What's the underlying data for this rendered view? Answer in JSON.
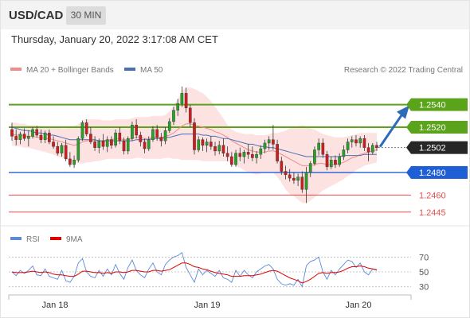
{
  "header": {
    "symbol": "USD/CAD",
    "timeframe": "30 MIN"
  },
  "datetime": "Thursday, January 20, 2022 3:17:08 AM CET",
  "legend": {
    "ma20_label": "MA 20 + Bollinger Bands",
    "ma50_label": "MA 50",
    "copyright": "Research © 2022 Trading Central"
  },
  "colors": {
    "bull": "#27a127",
    "bear": "#cc1e1e",
    "band_fill": "#fde2e2",
    "ma20": "#f08c8c",
    "ma50": "#4a6fb5",
    "resistance": "#5aa31b",
    "support": "#1f5fd6",
    "target": "#e05050",
    "arrow": "#2c6bb8",
    "rsi": "#5b8ad8",
    "rsi_ma": "#e00000"
  },
  "levels": [
    {
      "id": "r2",
      "value": 1.254,
      "label": "1.2540",
      "kind": "resistance"
    },
    {
      "id": "r1",
      "value": 1.252,
      "label": "1.2520",
      "kind": "resistance"
    },
    {
      "id": "last",
      "value": 1.2502,
      "label": "1.2502",
      "kind": "last"
    },
    {
      "id": "s1",
      "value": 1.248,
      "label": "1.2480",
      "kind": "support"
    },
    {
      "id": "s2",
      "value": 1.246,
      "label": "1.2460",
      "kind": "target"
    },
    {
      "id": "s3",
      "value": 1.2445,
      "label": "1.2445",
      "kind": "target"
    }
  ],
  "oscillator": {
    "rsi_label": "RSI",
    "ma_label": "9MA",
    "ticks": [
      "70",
      "50",
      "30"
    ]
  },
  "x_axis": {
    "labels": [
      "Jan 18",
      "Jan 19",
      "Jan 20"
    ]
  },
  "chart_data": {
    "type": "candlestick",
    "interval": "30 MIN",
    "ylim": [
      1.2435,
      1.2565
    ],
    "ohlc": [
      [
        1.2518,
        1.2524,
        1.2508,
        1.2512
      ],
      [
        1.2512,
        1.2518,
        1.2504,
        1.2509
      ],
      [
        1.2509,
        1.2516,
        1.2505,
        1.2514
      ],
      [
        1.2514,
        1.2519,
        1.2508,
        1.251
      ],
      [
        1.251,
        1.2517,
        1.2503,
        1.2512
      ],
      [
        1.2512,
        1.252,
        1.251,
        1.2518
      ],
      [
        1.2518,
        1.2521,
        1.2511,
        1.2513
      ],
      [
        1.2513,
        1.2518,
        1.2506,
        1.2509
      ],
      [
        1.2509,
        1.2517,
        1.2506,
        1.2515
      ],
      [
        1.2515,
        1.2518,
        1.2505,
        1.2507
      ],
      [
        1.2507,
        1.2512,
        1.2501,
        1.2503
      ],
      [
        1.2503,
        1.2507,
        1.2495,
        1.2497
      ],
      [
        1.2497,
        1.2506,
        1.2494,
        1.2504
      ],
      [
        1.2504,
        1.2509,
        1.249,
        1.2492
      ],
      [
        1.2492,
        1.2498,
        1.2485,
        1.2487
      ],
      [
        1.2487,
        1.2495,
        1.2484,
        1.2491
      ],
      [
        1.2491,
        1.2512,
        1.2489,
        1.251
      ],
      [
        1.251,
        1.2526,
        1.2508,
        1.2524
      ],
      [
        1.2524,
        1.2527,
        1.2512,
        1.2514
      ],
      [
        1.2514,
        1.252,
        1.2505,
        1.2507
      ],
      [
        1.2507,
        1.2512,
        1.2499,
        1.2502
      ],
      [
        1.2502,
        1.251,
        1.2497,
        1.2508
      ],
      [
        1.2508,
        1.2514,
        1.25,
        1.2503
      ],
      [
        1.2503,
        1.2512,
        1.2498,
        1.2509
      ],
      [
        1.2509,
        1.2512,
        1.2501,
        1.2504
      ],
      [
        1.2504,
        1.2518,
        1.2502,
        1.2515
      ],
      [
        1.2515,
        1.252,
        1.2505,
        1.2508
      ],
      [
        1.2508,
        1.2511,
        1.2496,
        1.2499
      ],
      [
        1.2499,
        1.2512,
        1.2496,
        1.251
      ],
      [
        1.251,
        1.2525,
        1.2508,
        1.2522
      ],
      [
        1.2522,
        1.2527,
        1.251,
        1.2513
      ],
      [
        1.2513,
        1.2516,
        1.2503,
        1.2507
      ],
      [
        1.2507,
        1.251,
        1.2497,
        1.2501
      ],
      [
        1.2501,
        1.2512,
        1.2499,
        1.2509
      ],
      [
        1.2509,
        1.2521,
        1.2507,
        1.2518
      ],
      [
        1.2518,
        1.2522,
        1.2508,
        1.2511
      ],
      [
        1.2511,
        1.2515,
        1.2503,
        1.2508
      ],
      [
        1.2508,
        1.252,
        1.2505,
        1.2517
      ],
      [
        1.2517,
        1.2528,
        1.2515,
        1.2525
      ],
      [
        1.2525,
        1.2538,
        1.2522,
        1.2535
      ],
      [
        1.2535,
        1.2545,
        1.253,
        1.2541
      ],
      [
        1.2541,
        1.2556,
        1.2538,
        1.255
      ],
      [
        1.255,
        1.2555,
        1.2533,
        1.2537
      ],
      [
        1.2537,
        1.254,
        1.252,
        1.2524
      ],
      [
        1.2524,
        1.2528,
        1.2496,
        1.25
      ],
      [
        1.25,
        1.2512,
        1.2498,
        1.2509
      ],
      [
        1.2509,
        1.2511,
        1.2499,
        1.2504
      ],
      [
        1.2504,
        1.251,
        1.2498,
        1.2507
      ],
      [
        1.2507,
        1.2512,
        1.25,
        1.2503
      ],
      [
        1.2503,
        1.2507,
        1.2495,
        1.2499
      ],
      [
        1.2499,
        1.2508,
        1.2496,
        1.2504
      ],
      [
        1.2504,
        1.251,
        1.2494,
        1.2497
      ],
      [
        1.2497,
        1.2503,
        1.249,
        1.2494
      ],
      [
        1.2494,
        1.2498,
        1.2485,
        1.2487
      ],
      [
        1.2487,
        1.25,
        1.2485,
        1.2497
      ],
      [
        1.2497,
        1.2502,
        1.249,
        1.2494
      ],
      [
        1.2494,
        1.25,
        1.2488,
        1.2498
      ],
      [
        1.2498,
        1.2505,
        1.2492,
        1.2496
      ],
      [
        1.2496,
        1.2503,
        1.249,
        1.2493
      ],
      [
        1.2493,
        1.2499,
        1.2488,
        1.2496
      ],
      [
        1.2496,
        1.2504,
        1.2492,
        1.2501
      ],
      [
        1.2501,
        1.2509,
        1.2497,
        1.2506
      ],
      [
        1.2506,
        1.2512,
        1.25,
        1.2509
      ],
      [
        1.2509,
        1.2522,
        1.25,
        1.2505
      ],
      [
        1.2505,
        1.2509,
        1.2488,
        1.249
      ],
      [
        1.249,
        1.2494,
        1.2478,
        1.2481
      ],
      [
        1.2481,
        1.2486,
        1.2474,
        1.2478
      ],
      [
        1.2478,
        1.2483,
        1.2472,
        1.2475
      ],
      [
        1.2475,
        1.248,
        1.247,
        1.2473
      ],
      [
        1.2473,
        1.2479,
        1.2468,
        1.2476
      ],
      [
        1.2476,
        1.2481,
        1.2462,
        1.2465
      ],
      [
        1.2465,
        1.2485,
        1.2453,
        1.248
      ],
      [
        1.248,
        1.249,
        1.2476,
        1.2488
      ],
      [
        1.2488,
        1.2503,
        1.2486,
        1.25
      ],
      [
        1.25,
        1.251,
        1.2495,
        1.2506
      ],
      [
        1.2506,
        1.251,
        1.2493,
        1.2496
      ],
      [
        1.2496,
        1.2499,
        1.2482,
        1.2485
      ],
      [
        1.2485,
        1.2494,
        1.2483,
        1.2491
      ],
      [
        1.2491,
        1.2495,
        1.2484,
        1.2487
      ],
      [
        1.2487,
        1.2497,
        1.2485,
        1.2494
      ],
      [
        1.2494,
        1.2504,
        1.2491,
        1.25
      ],
      [
        1.25,
        1.251,
        1.2497,
        1.2507
      ],
      [
        1.2507,
        1.2512,
        1.2502,
        1.2509
      ],
      [
        1.2509,
        1.2513,
        1.2503,
        1.2506
      ],
      [
        1.2506,
        1.2512,
        1.2502,
        1.251
      ],
      [
        1.251,
        1.2513,
        1.2499,
        1.2502
      ],
      [
        1.2502,
        1.2506,
        1.249,
        1.2498
      ],
      [
        1.2498,
        1.2506,
        1.2496,
        1.2504
      ],
      [
        1.2504,
        1.2507,
        1.2499,
        1.2502
      ]
    ],
    "ma20": [
      1.2514,
      1.2513,
      1.2513,
      1.2512,
      1.2512,
      1.2512,
      1.2511,
      1.2511,
      1.251,
      1.251,
      1.2509,
      1.2508,
      1.2507,
      1.2506,
      1.2505,
      1.2504,
      1.2505,
      1.2507,
      1.2508,
      1.2508,
      1.2508,
      1.2508,
      1.2508,
      1.2509,
      1.2509,
      1.251,
      1.251,
      1.2509,
      1.2509,
      1.251,
      1.2511,
      1.2511,
      1.251,
      1.251,
      1.2511,
      1.2511,
      1.2511,
      1.2512,
      1.2513,
      1.2515,
      1.2518,
      1.2521,
      1.2523,
      1.2523,
      1.2522,
      1.2521,
      1.252,
      1.2519,
      1.2518,
      1.2516,
      1.2515,
      1.2513,
      1.2511,
      1.2508,
      1.2506,
      1.2504,
      1.2502,
      1.25,
      1.2499,
      1.2498,
      1.2498,
      1.2498,
      1.2499,
      1.2499,
      1.2498,
      1.2496,
      1.2494,
      1.2492,
      1.249,
      1.2488,
      1.2486,
      1.2486,
      1.2486,
      1.2487,
      1.2488,
      1.2488,
      1.2487,
      1.2487,
      1.2487,
      1.2488,
      1.2489,
      1.2491,
      1.2493,
      1.2494,
      1.2496,
      1.2497,
      1.2498,
      1.2499,
      1.25
    ],
    "upper_band": [
      1.2524,
      1.2524,
      1.2523,
      1.2523,
      1.2522,
      1.2522,
      1.2522,
      1.2521,
      1.2521,
      1.252,
      1.252,
      1.252,
      1.2519,
      1.2519,
      1.252,
      1.2521,
      1.2523,
      1.2526,
      1.2527,
      1.2527,
      1.2527,
      1.2527,
      1.2526,
      1.2526,
      1.2526,
      1.2527,
      1.2527,
      1.2527,
      1.2527,
      1.2528,
      1.2529,
      1.2529,
      1.2529,
      1.2529,
      1.253,
      1.253,
      1.253,
      1.2531,
      1.2534,
      1.2539,
      1.2545,
      1.2552,
      1.2555,
      1.2555,
      1.2554,
      1.2552,
      1.255,
      1.2547,
      1.2543,
      1.2538,
      1.2533,
      1.2528,
      1.2522,
      1.2518,
      1.2516,
      1.2515,
      1.2514,
      1.2514,
      1.2514,
      1.2513,
      1.2513,
      1.2513,
      1.2514,
      1.2515,
      1.2515,
      1.2516,
      1.2517,
      1.2519,
      1.252,
      1.2521,
      1.2522,
      1.2521,
      1.2519,
      1.2518,
      1.2516,
      1.2514,
      1.2513,
      1.2512,
      1.2511,
      1.2511,
      1.2511,
      1.2512,
      1.2513,
      1.2514,
      1.2515,
      1.2515,
      1.2515,
      1.2515,
      1.2515
    ],
    "lower_band": [
      1.2504,
      1.2503,
      1.2503,
      1.2502,
      1.2502,
      1.2501,
      1.25,
      1.2499,
      1.2498,
      1.2497,
      1.2496,
      1.2494,
      1.2493,
      1.2492,
      1.249,
      1.2489,
      1.2488,
      1.2488,
      1.2489,
      1.2489,
      1.249,
      1.249,
      1.2491,
      1.2492,
      1.2492,
      1.2492,
      1.2492,
      1.2492,
      1.2492,
      1.2492,
      1.2493,
      1.2493,
      1.2492,
      1.2492,
      1.2492,
      1.2492,
      1.2492,
      1.2493,
      1.2493,
      1.2492,
      1.2492,
      1.2491,
      1.2491,
      1.2491,
      1.2491,
      1.2491,
      1.249,
      1.249,
      1.249,
      1.249,
      1.249,
      1.249,
      1.249,
      1.2488,
      1.2486,
      1.2484,
      1.2482,
      1.248,
      1.2479,
      1.2478,
      1.2479,
      1.248,
      1.248,
      1.248,
      1.2476,
      1.2471,
      1.2465,
      1.2461,
      1.2459,
      1.2456,
      1.2453,
      1.2453,
      1.2455,
      1.2458,
      1.2461,
      1.2464,
      1.2466,
      1.2468,
      1.247,
      1.2472,
      1.2474,
      1.2477,
      1.2479,
      1.2482,
      1.2484,
      1.2486,
      1.2487,
      1.2488,
      1.2489
    ],
    "ma50": [
      1.252,
      1.2519,
      1.2518,
      1.2517,
      1.2517,
      1.2516,
      1.2515,
      1.2515,
      1.2514,
      1.2513,
      1.2513,
      1.2512,
      1.2511,
      1.251,
      1.2509,
      1.2509,
      1.2509,
      1.2509,
      1.2509,
      1.2509,
      1.2509,
      1.2508,
      1.2508,
      1.2508,
      1.2508,
      1.2508,
      1.2508,
      1.2508,
      1.2508,
      1.2508,
      1.2509,
      1.2509,
      1.2509,
      1.2509,
      1.251,
      1.251,
      1.251,
      1.2511,
      1.2511,
      1.2512,
      1.2513,
      1.2514,
      1.2514,
      1.2514,
      1.2514,
      1.2514,
      1.2513,
      1.2513,
      1.2512,
      1.2512,
      1.2511,
      1.251,
      1.251,
      1.2509,
      1.2508,
      1.2507,
      1.2506,
      1.2505,
      1.2505,
      1.2504,
      1.2503,
      1.2503,
      1.2502,
      1.2502,
      1.2501,
      1.25,
      1.2499,
      1.2498,
      1.2497,
      1.2496,
      1.2495,
      1.2494,
      1.2494,
      1.2494,
      1.2494,
      1.2494,
      1.2494,
      1.2494,
      1.2494,
      1.2494,
      1.2495,
      1.2495,
      1.2495,
      1.2495,
      1.2495,
      1.2496,
      1.2496,
      1.2496,
      1.2496
    ],
    "forecast": {
      "from": 1.2502,
      "to": 1.254
    },
    "rsi": [
      50,
      45,
      52,
      48,
      52,
      58,
      46,
      45,
      54,
      44,
      42,
      40,
      52,
      38,
      36,
      44,
      62,
      68,
      50,
      44,
      42,
      52,
      44,
      54,
      46,
      60,
      48,
      40,
      56,
      66,
      52,
      46,
      42,
      54,
      62,
      50,
      46,
      60,
      66,
      70,
      72,
      76,
      56,
      46,
      36,
      54,
      46,
      52,
      48,
      44,
      52,
      42,
      40,
      36,
      52,
      44,
      52,
      46,
      42,
      50,
      54,
      58,
      60,
      54,
      40,
      34,
      32,
      34,
      32,
      40,
      30,
      58,
      64,
      66,
      70,
      50,
      40,
      52,
      46,
      54,
      60,
      66,
      64,
      56,
      62,
      50,
      46,
      54,
      52
    ],
    "rsi_ma": [
      50,
      49,
      49,
      49,
      50,
      51,
      50,
      49,
      50,
      49,
      47,
      46,
      46,
      45,
      44,
      44,
      47,
      51,
      51,
      50,
      49,
      49,
      48,
      49,
      48,
      50,
      50,
      49,
      50,
      52,
      52,
      51,
      50,
      50,
      52,
      52,
      51,
      52,
      53,
      56,
      59,
      62,
      62,
      60,
      57,
      56,
      54,
      53,
      51,
      49,
      48,
      47,
      46,
      44,
      44,
      44,
      45,
      45,
      45,
      46,
      47,
      49,
      51,
      52,
      51,
      48,
      45,
      42,
      40,
      38,
      35,
      37,
      40,
      44,
      48,
      49,
      48,
      49,
      49,
      50,
      52,
      55,
      57,
      57,
      58,
      57,
      55,
      54,
      53
    ],
    "rsi_ylim": [
      20,
      80
    ]
  }
}
